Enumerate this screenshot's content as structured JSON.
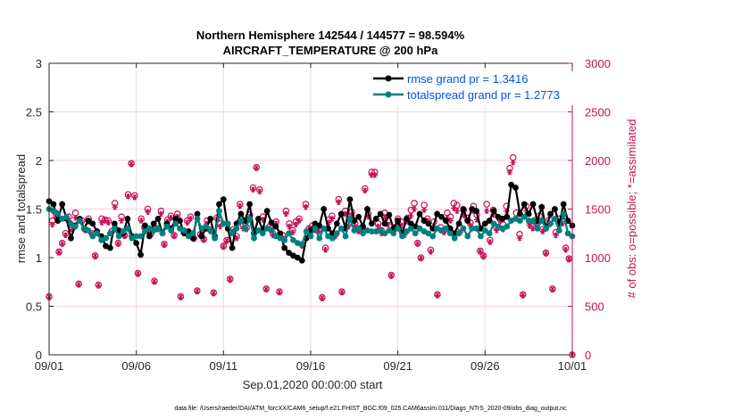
{
  "chart_data": {
    "type": "line",
    "title": "Northern Hemisphere 142544 / 144577 = 98.594%",
    "subtitle": "AIRCRAFT_TEMPERATURE @ 200 hPa",
    "xlabel": "Sep.01,2020 00:00:00 start",
    "ylabel": "rmse and totalspread",
    "y2label": "# of obs: o=possible; *=assimilated",
    "xlim_days": [
      0,
      30
    ],
    "ylim": [
      0,
      3
    ],
    "y2lim": [
      0,
      3000
    ],
    "x_ticks": [
      {
        "day": 0,
        "label": "09/01"
      },
      {
        "day": 5,
        "label": "09/06"
      },
      {
        "day": 10,
        "label": "09/11"
      },
      {
        "day": 15,
        "label": "09/16"
      },
      {
        "day": 20,
        "label": "09/21"
      },
      {
        "day": 25,
        "label": "09/26"
      },
      {
        "day": 30,
        "label": "10/01"
      }
    ],
    "y_ticks": [
      "0",
      "0.5",
      "1",
      "1.5",
      "2",
      "2.5",
      "3"
    ],
    "y2_ticks": [
      "0",
      "500",
      "1000",
      "1500",
      "2000",
      "2500",
      "3000"
    ],
    "grid": true,
    "legend": {
      "placement": "top-right",
      "entries": [
        {
          "label": "rmse grand pr = 1.3416",
          "color": "#000000"
        },
        {
          "label": "totalspread grand pr = 1.2773",
          "color": "#008080"
        }
      ]
    },
    "colors": {
      "rmse": "#000000",
      "totalspread": "#008080",
      "obs": "#c8105a"
    },
    "x_step_days": 0.25,
    "series": [
      {
        "name": "rmse",
        "values": [
          1.58,
          1.55,
          1.38,
          1.55,
          1.4,
          1.2,
          1.33,
          1.4,
          1.3,
          1.38,
          1.35,
          1.27,
          1.22,
          1.12,
          1.1,
          1.35,
          1.28,
          1.25,
          1.4,
          1.22,
          1.15,
          1.03,
          1.33,
          1.22,
          1.35,
          1.4,
          1.25,
          1.35,
          1.3,
          1.4,
          1.38,
          1.25,
          1.27,
          1.2,
          1.45,
          1.22,
          1.3,
          1.4,
          1.22,
          1.55,
          1.6,
          1.3,
          1.1,
          1.35,
          1.45,
          1.38,
          1.55,
          1.25,
          1.4,
          1.28,
          1.48,
          1.36,
          1.32,
          1.25,
          1.1,
          1.05,
          1.02,
          1.0,
          0.97,
          1.2,
          1.28,
          1.35,
          1.33,
          1.5,
          1.3,
          1.25,
          1.35,
          1.45,
          1.3,
          1.6,
          1.38,
          1.42,
          1.32,
          1.5,
          1.35,
          1.4,
          1.45,
          1.35,
          1.44,
          1.3,
          1.38,
          1.25,
          1.4,
          1.35,
          1.32,
          1.45,
          1.38,
          1.35,
          1.3,
          1.45,
          1.42,
          1.38,
          1.3,
          1.25,
          1.35,
          1.5,
          1.38,
          1.5,
          1.48,
          1.3,
          1.35,
          1.38,
          1.48,
          1.42,
          1.4,
          1.42,
          1.75,
          1.72,
          1.45,
          1.55,
          1.45,
          1.55,
          1.38,
          1.52,
          1.3,
          1.45,
          1.5,
          1.35,
          1.55,
          1.38,
          1.33
        ]
      },
      {
        "name": "totalspread",
        "values": [
          1.5,
          1.48,
          1.45,
          1.4,
          1.42,
          1.35,
          1.32,
          1.38,
          1.3,
          1.28,
          1.22,
          1.25,
          1.18,
          1.2,
          1.25,
          1.3,
          1.22,
          1.27,
          1.3,
          1.2,
          1.22,
          1.22,
          1.27,
          1.3,
          1.28,
          1.3,
          1.25,
          1.32,
          1.28,
          1.35,
          1.3,
          1.28,
          1.22,
          1.25,
          1.4,
          1.3,
          1.32,
          1.28,
          1.2,
          1.48,
          1.35,
          1.35,
          1.25,
          1.3,
          1.38,
          1.3,
          1.4,
          1.2,
          1.28,
          1.25,
          1.3,
          1.28,
          1.22,
          1.2,
          1.18,
          1.25,
          1.18,
          1.15,
          1.14,
          1.27,
          1.22,
          1.3,
          1.2,
          1.3,
          1.22,
          1.2,
          1.25,
          1.3,
          1.22,
          1.4,
          1.28,
          1.3,
          1.25,
          1.28,
          1.27,
          1.27,
          1.28,
          1.25,
          1.28,
          1.25,
          1.3,
          1.22,
          1.27,
          1.3,
          1.25,
          1.3,
          1.27,
          1.25,
          1.22,
          1.3,
          1.28,
          1.3,
          1.25,
          1.2,
          1.25,
          1.3,
          1.22,
          1.3,
          1.3,
          1.22,
          1.28,
          1.25,
          1.35,
          1.32,
          1.3,
          1.32,
          1.38,
          1.4,
          1.38,
          1.42,
          1.38,
          1.38,
          1.3,
          1.38,
          1.3,
          1.35,
          1.4,
          1.28,
          1.45,
          1.25,
          1.22
        ]
      },
      {
        "name": "possible",
        "values": [
          600,
          1380,
          1460,
          1060,
          1150,
          1250,
          1420,
          1300,
          1460,
          730,
          1380,
          1290,
          1400,
          1250,
          1020,
          720,
          1400,
          1390,
          1380,
          1270,
          1560,
          1150,
          1420,
          1230,
          1650,
          1970,
          1640,
          840,
          1400,
          1310,
          1500,
          1250,
          760,
          1300,
          1480,
          1140,
          1390,
          1430,
          1230,
          1450,
          600,
          1260,
          1380,
          1420,
          1200,
          660,
          1240,
          1190,
          1380,
          1290,
          640,
          1410,
          1350,
          1120,
          1180,
          780,
          1290,
          1220,
          1550,
          1330,
          1310,
          1440,
          1720,
          1930,
          1700,
          1420,
          680,
          1320,
          1250,
          1370,
          650,
          1230,
          1480,
          1350,
          1280,
          1370,
          1400,
          1130,
          1550,
          1300,
          1330,
          1300,
          1290,
          590,
          1100,
          1390,
          1430,
          1240,
          1600,
          650,
          1480,
          1350,
          1470,
          1350,
          1290,
          1310,
          1710,
          1450,
          1880,
          1880,
          1350,
          1280,
          1460,
          1380,
          820,
          1310,
          1400,
          1370,
          1260,
          1410,
          1490,
          1560,
          1150,
          1000,
          1540,
          1400,
          1080,
          1370,
          620,
          1310,
          1280,
          1460,
          1420,
          1560,
          1540,
          1310,
          1490,
          1410,
          1360,
          1530,
          1440,
          1070,
          1020,
          1550,
          1180,
          1490,
          1310,
          1400,
          1340,
          1530,
          1920,
          2030,
          1460,
          1240,
          620,
          1530,
          1370,
          1320,
          1390,
          1430,
          1290,
          1050,
          1390,
          680,
          1260,
          1400,
          1370,
          1100,
          990,
          0
        ]
      },
      {
        "name": "assimilated",
        "values": [
          590,
          1340,
          1420,
          1050,
          1140,
          1230,
          1380,
          1290,
          1410,
          720,
          1360,
          1280,
          1370,
          1240,
          1010,
          710,
          1360,
          1380,
          1360,
          1250,
          1520,
          1140,
          1380,
          1220,
          1630,
          1960,
          1620,
          830,
          1380,
          1300,
          1470,
          1240,
          750,
          1290,
          1450,
          1130,
          1370,
          1410,
          1220,
          1420,
          590,
          1250,
          1360,
          1400,
          1190,
          650,
          1230,
          1180,
          1350,
          1270,
          630,
          1390,
          1320,
          1110,
          1170,
          770,
          1270,
          1200,
          1530,
          1300,
          1290,
          1420,
          1700,
          1920,
          1680,
          1390,
          670,
          1300,
          1230,
          1350,
          640,
          1200,
          1450,
          1320,
          1260,
          1340,
          1380,
          1120,
          1520,
          1290,
          1300,
          1280,
          1270,
          580,
          1080,
          1360,
          1400,
          1220,
          1570,
          640,
          1450,
          1320,
          1440,
          1320,
          1270,
          1290,
          1690,
          1420,
          1850,
          1850,
          1320,
          1250,
          1420,
          1340,
          810,
          1280,
          1360,
          1330,
          1230,
          1370,
          1430,
          1500,
          1140,
          990,
          1490,
          1380,
          1060,
          1320,
          610,
          1280,
          1260,
          1410,
          1380,
          1510,
          1480,
          1260,
          1440,
          1380,
          1330,
          1480,
          1390,
          1060,
          1010,
          1480,
          1160,
          1440,
          1280,
          1380,
          1290,
          1480,
          1880,
          1980,
          1400,
          1200,
          610,
          1480,
          1330,
          1300,
          1340,
          1380,
          1270,
          1040,
          1340,
          670,
          1230,
          1330,
          1350,
          1080,
          980,
          0
        ]
      }
    ]
  },
  "footer": "data file: /Users/raeder/DAI/ATM_forcXX/CAM6_setup/f.e21.FHIST_BGC.f09_025.CAM6assim.011/Diags_NTrS_2020-09/obs_diag_output.nc"
}
